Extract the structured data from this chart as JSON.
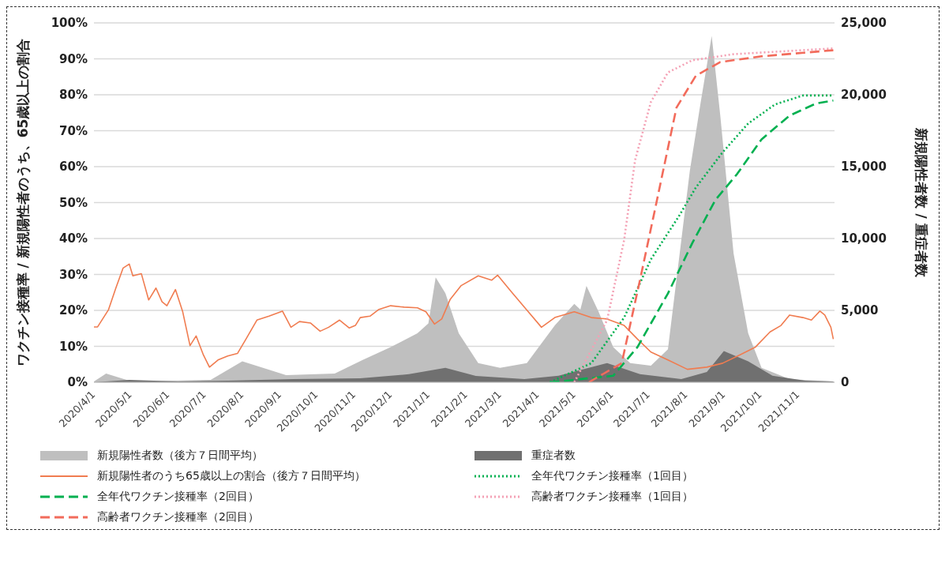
{
  "chart_data": {
    "type": "line",
    "ylabel": "ワクチン接種率 / 新規陽性者のうち、65歳以上の割合",
    "y2label": "新規陽性者数 / 重症者数",
    "xlim": [
      "2020-04-01",
      "2021-12-01"
    ],
    "xticks": [
      {
        "value": "2020-04-01",
        "label": "2020/4/1"
      },
      {
        "value": "2020-05-01",
        "label": "2020/5/1"
      },
      {
        "value": "2020-06-01",
        "label": "2020/6/1"
      },
      {
        "value": "2020-07-01",
        "label": "2020/7/1"
      },
      {
        "value": "2020-08-01",
        "label": "2020/8/1"
      },
      {
        "value": "2020-09-01",
        "label": "2020/9/1"
      },
      {
        "value": "2020-10-01",
        "label": "2020/10/1"
      },
      {
        "value": "2020-11-01",
        "label": "2020/11/1"
      },
      {
        "value": "2020-12-01",
        "label": "2020/12/1"
      },
      {
        "value": "2021-01-01",
        "label": "2021/1/1"
      },
      {
        "value": "2021-02-01",
        "label": "2021/2/1"
      },
      {
        "value": "2021-03-01",
        "label": "2021/3/1"
      },
      {
        "value": "2021-04-01",
        "label": "2021/4/1"
      },
      {
        "value": "2021-05-01",
        "label": "2021/5/1"
      },
      {
        "value": "2021-06-01",
        "label": "2021/6/1"
      },
      {
        "value": "2021-07-01",
        "label": "2021/7/1"
      },
      {
        "value": "2021-08-01",
        "label": "2021/8/1"
      },
      {
        "value": "2021-09-01",
        "label": "2021/9/1"
      },
      {
        "value": "2021-10-01",
        "label": "2021/10/1"
      },
      {
        "value": "2021-11-01",
        "label": "2021/11/1"
      }
    ],
    "ylim": [
      0,
      100
    ],
    "yticks": [
      {
        "value": 0,
        "label": "0%"
      },
      {
        "value": 10,
        "label": "10%"
      },
      {
        "value": 20,
        "label": "20%"
      },
      {
        "value": 30,
        "label": "30%"
      },
      {
        "value": 40,
        "label": "40%"
      },
      {
        "value": 50,
        "label": "50%"
      },
      {
        "value": 60,
        "label": "60%"
      },
      {
        "value": 70,
        "label": "70%"
      },
      {
        "value": 80,
        "label": "80%"
      },
      {
        "value": 90,
        "label": "90%"
      },
      {
        "value": 100,
        "label": "100%"
      }
    ],
    "y2lim": [
      0,
      25000
    ],
    "y2ticks": [
      0,
      {
        "value": 5000,
        "label": "5,000"
      },
      {
        "value": 10000,
        "label": "10,000"
      },
      {
        "value": 15000,
        "label": "15,000"
      },
      {
        "value": 20000,
        "label": "20,000"
      },
      {
        "value": 25000,
        "label": "25,000"
      }
    ],
    "grid": "y",
    "legend": "bottom",
    "marker": "none",
    "series": [
      {
        "name": "新規陽性者数（後方７日間平均）",
        "type": "area",
        "axis": "y2",
        "color": "#bfbfbf",
        "x": [
          "2020-04-01",
          "2020-04-11",
          "2020-05-02",
          "2020-07-06",
          "2020-08-01",
          "2020-08-18",
          "2020-09-06",
          "2020-10-16",
          "2020-11-08",
          "2020-12-01",
          "2020-12-23",
          "2021-01-01",
          "2021-01-07",
          "2021-01-15",
          "2021-01-26",
          "2021-02-11",
          "2021-03-01",
          "2021-03-23",
          "2021-04-15",
          "2021-05-01",
          "2021-05-06",
          "2021-05-11",
          "2021-05-21",
          "2021-06-02",
          "2021-06-16",
          "2021-07-03",
          "2021-07-17",
          "2021-08-04",
          "2021-08-13",
          "2021-08-22",
          "2021-08-29",
          "2021-09-09",
          "2021-09-21",
          "2021-10-02",
          "2021-10-25",
          "2021-11-30"
        ],
        "values": [
          50,
          610,
          50,
          170,
          1450,
          1000,
          500,
          610,
          1550,
          2450,
          3400,
          4100,
          7300,
          6200,
          3400,
          1330,
          1000,
          1330,
          3950,
          5450,
          5050,
          6700,
          4900,
          2450,
          1330,
          1150,
          2300,
          14700,
          19500,
          24100,
          18600,
          8950,
          3400,
          1000,
          220,
          50
        ]
      },
      {
        "name": "重症者数",
        "type": "area",
        "axis": "y2",
        "color": "#707070",
        "x": [
          "2020-04-01",
          "2020-04-30",
          "2020-06-09",
          "2020-07-20",
          "2020-09-12",
          "2020-11-06",
          "2020-12-16",
          "2021-01-15",
          "2021-02-09",
          "2021-03-21",
          "2021-04-18",
          "2021-05-28",
          "2021-06-24",
          "2021-07-28",
          "2021-08-18",
          "2021-09-01",
          "2021-09-21",
          "2021-10-11",
          "2021-11-07",
          "2021-11-30"
        ],
        "values": [
          0,
          170,
          50,
          110,
          220,
          280,
          560,
          1000,
          440,
          220,
          450,
          1330,
          560,
          220,
          720,
          2170,
          1450,
          450,
          110,
          50
        ]
      },
      {
        "name": "新規陽性者のうち65歳以上の割合（後方７日間平均）",
        "line_style": "solid",
        "color": "#f07c50",
        "x": [
          "2020-04-01",
          "2020-04-04",
          "2020-04-13",
          "2020-04-19",
          "2020-04-25",
          "2020-04-30",
          "2020-05-03",
          "2020-05-10",
          "2020-05-16",
          "2020-05-22",
          "2020-05-27",
          "2020-05-31",
          "2020-06-07",
          "2020-06-13",
          "2020-06-19",
          "2020-06-24",
          "2020-06-30",
          "2020-07-05",
          "2020-07-12",
          "2020-07-20",
          "2020-07-28",
          "2020-08-04",
          "2020-08-13",
          "2020-08-23",
          "2020-09-03",
          "2020-09-10",
          "2020-09-17",
          "2020-09-26",
          "2020-10-04",
          "2020-10-11",
          "2020-10-20",
          "2020-10-28",
          "2020-11-02",
          "2020-11-06",
          "2020-11-14",
          "2020-11-21",
          "2020-12-01",
          "2020-12-12",
          "2020-12-23",
          "2020-12-30",
          "2021-01-06",
          "2021-01-12",
          "2021-01-19",
          "2021-01-28",
          "2021-02-11",
          "2021-02-22",
          "2021-02-27",
          "2021-03-10",
          "2021-03-21",
          "2021-04-04",
          "2021-04-15",
          "2021-05-01",
          "2021-05-15",
          "2021-05-28",
          "2021-06-11",
          "2021-06-22",
          "2021-07-03",
          "2021-07-17",
          "2021-08-02",
          "2021-08-18",
          "2021-08-31",
          "2021-09-14",
          "2021-09-27",
          "2021-10-09",
          "2021-10-18",
          "2021-10-25",
          "2021-11-05",
          "2021-11-12",
          "2021-11-19",
          "2021-11-23",
          "2021-11-28",
          "2021-11-30"
        ],
        "values": [
          15.4,
          15.4,
          20.2,
          26.2,
          31.8,
          32.9,
          29.6,
          30.2,
          22.9,
          26.2,
          22.4,
          21.3,
          25.8,
          19.6,
          10.2,
          12.9,
          7.6,
          4.2,
          6.2,
          7.3,
          8.0,
          12.0,
          17.3,
          18.4,
          19.8,
          15.3,
          16.9,
          16.5,
          14.2,
          15.3,
          17.3,
          15.1,
          15.8,
          18.0,
          18.4,
          20.2,
          21.3,
          20.9,
          20.7,
          19.6,
          16.2,
          17.6,
          23.1,
          26.9,
          29.6,
          28.4,
          29.8,
          25.3,
          20.9,
          15.3,
          18.0,
          19.6,
          18.0,
          17.6,
          15.8,
          12.0,
          8.4,
          6.2,
          3.6,
          4.2,
          5.3,
          7.6,
          9.8,
          14.0,
          15.8,
          18.7,
          18.0,
          17.3,
          19.8,
          18.7,
          15.3,
          12.0
        ]
      },
      {
        "name": "全年代ワクチン接種率（1回目）",
        "line_style": "dotted",
        "color": "#00b050",
        "x": [
          "2021-04-11",
          "2021-05-15",
          "2021-06-11",
          "2021-07-03",
          "2021-07-26",
          "2021-08-09",
          "2021-08-31",
          "2021-09-21",
          "2021-10-13",
          "2021-11-05",
          "2021-11-30"
        ],
        "values": [
          0,
          5.3,
          18,
          34.2,
          46.2,
          54.2,
          64,
          72,
          77.3,
          79.8,
          79.8
        ]
      },
      {
        "name": "全年代ワクチン接種率（2回目）",
        "line_style": "dashed",
        "color": "#00b050",
        "x": [
          "2021-04-11",
          "2021-06-02",
          "2021-06-22",
          "2021-07-17",
          "2021-08-06",
          "2021-08-25",
          "2021-09-12",
          "2021-10-02",
          "2021-10-25",
          "2021-11-16",
          "2021-11-30"
        ],
        "values": [
          0,
          1.8,
          9.8,
          24.7,
          38.7,
          50.7,
          58,
          67.6,
          74.2,
          77.6,
          78.4
        ]
      },
      {
        "name": "高齢者ワクチン接種率（1回目）",
        "line_style": "dotted",
        "color": "#f4a0b4",
        "x": [
          "2021-05-01",
          "2021-05-28",
          "2021-06-11",
          "2021-06-20",
          "2021-07-03",
          "2021-07-17",
          "2021-08-06",
          "2021-09-09",
          "2021-11-30"
        ],
        "values": [
          0,
          17.3,
          39.6,
          61.8,
          78,
          86.2,
          89.6,
          91.3,
          92.9
        ]
      },
      {
        "name": "高齢者ワクチン接種率（2回目）",
        "line_style": "dashed",
        "color": "#f26b5b",
        "x": [
          "2021-05-13",
          "2021-06-09",
          "2021-06-24",
          "2021-07-08",
          "2021-07-24",
          "2021-08-09",
          "2021-08-29",
          "2021-10-02",
          "2021-11-30"
        ],
        "values": [
          0,
          5.3,
          28.4,
          50.7,
          76.4,
          85.3,
          89.1,
          90.7,
          92.4
        ]
      }
    ]
  }
}
